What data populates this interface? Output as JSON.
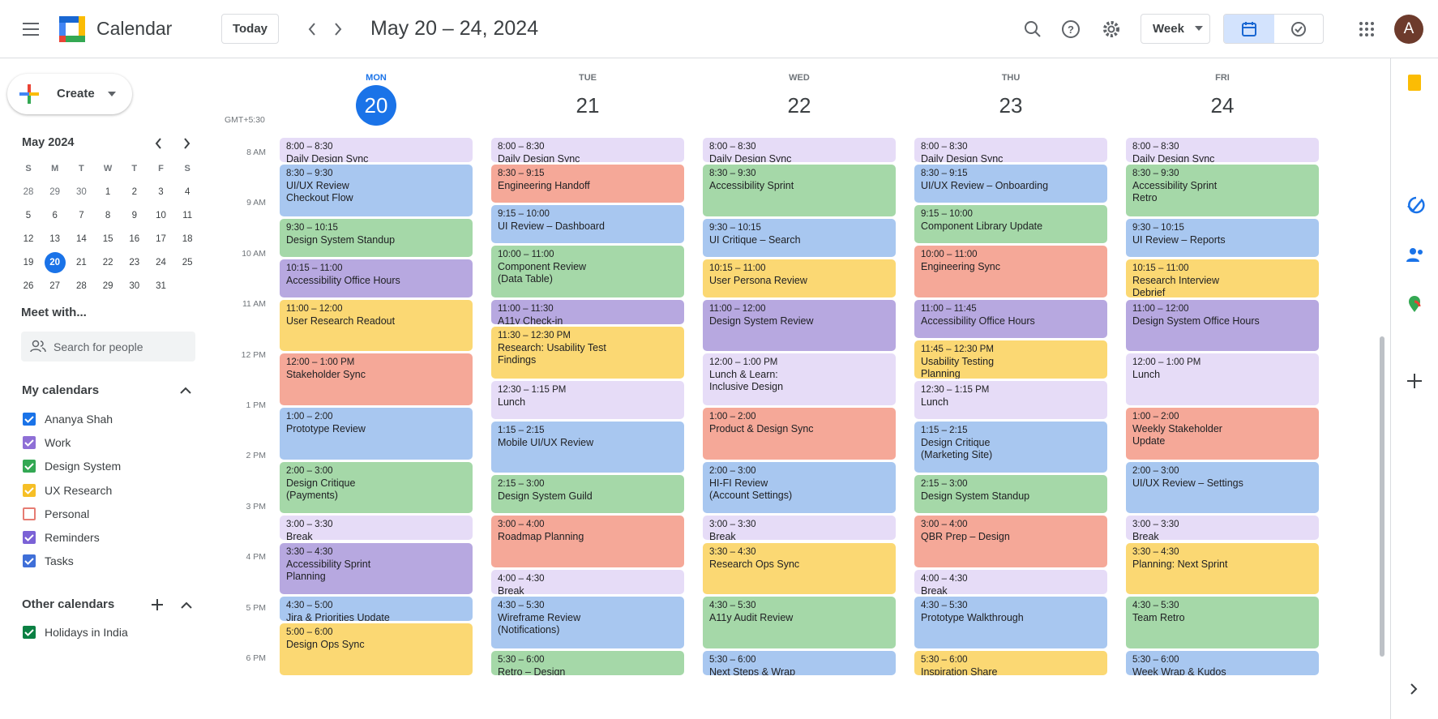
{
  "header": {
    "app_name": "Calendar",
    "today": "Today",
    "date_range": "May 20 – 24, 2024",
    "view": "Week",
    "avatar": "A"
  },
  "sidebar": {
    "create": "Create",
    "mini_calendar": {
      "title": "May 2024",
      "weekdays": [
        "S",
        "M",
        "T",
        "W",
        "T",
        "F",
        "S"
      ],
      "selected": "20",
      "weeks": [
        [
          "28",
          "29",
          "30",
          "1",
          "2",
          "3",
          "4"
        ],
        [
          "5",
          "6",
          "7",
          "8",
          "9",
          "10",
          "11"
        ],
        [
          "12",
          "13",
          "14",
          "15",
          "16",
          "17",
          "18"
        ],
        [
          "19",
          "20",
          "21",
          "22",
          "23",
          "24",
          "25"
        ],
        [
          "26",
          "27",
          "28",
          "29",
          "30",
          "31"
        ]
      ]
    },
    "meet_with": "Meet with...",
    "search_placeholder": "Search for people",
    "my_calendars": {
      "title": "My calendars",
      "items": [
        {
          "name": "Ananya Shah",
          "color": "#1a73e8",
          "checked": true
        },
        {
          "name": "Work",
          "color": "#8e6fd6",
          "checked": true
        },
        {
          "name": "Design System",
          "color": "#33a853",
          "checked": true
        },
        {
          "name": "UX Research",
          "color": "#f6bf26",
          "checked": true
        },
        {
          "name": "Personal",
          "color": "#e67c73",
          "checked": false
        },
        {
          "name": "Reminders",
          "color": "#7b62d6",
          "checked": true
        },
        {
          "name": "Tasks",
          "color": "#3f6fd8",
          "checked": true
        }
      ]
    },
    "other_calendars": {
      "title": "Other calendars",
      "items": [
        {
          "name": "Holidays in India",
          "color": "#0b8043",
          "checked": true
        }
      ]
    }
  },
  "week": {
    "timezone": "GMT+5:30",
    "hours": [
      "8 AM",
      "9 AM",
      "10 AM",
      "11 AM",
      "12 PM",
      "1 PM",
      "2 PM",
      "3 PM",
      "4 PM",
      "5 PM",
      "6 PM"
    ],
    "days": [
      {
        "weekday": "MON",
        "date": "20",
        "today": true,
        "events": [
          {
            "time": "8:00 – 8:30",
            "title": "Daily Design Sync",
            "color": "#e6dcf7"
          },
          {
            "time": "8:30 – 9:30",
            "title": "UI/UX Review\nCheckout Flow",
            "color": "#a8c7f0"
          },
          {
            "time": "9:30 – 10:15",
            "title": "Design System Standup",
            "color": "#a5d8a8"
          },
          {
            "time": "10:15 – 11:00",
            "title": "Accessibility Office Hours",
            "color": "#b7a8e0"
          },
          {
            "time": "11:00 – 12:00",
            "title": "User Research Readout",
            "color": "#fbd873"
          },
          {
            "time": "12:00 – 1:00 PM",
            "title": "Stakeholder Sync",
            "color": "#f5a898"
          },
          {
            "time": "1:00 – 2:00",
            "title": "Prototype Review",
            "color": "#a8c7f0"
          },
          {
            "time": "2:00 – 3:00",
            "title": "Design Critique\n(Payments)",
            "color": "#a5d8a8"
          },
          {
            "time": "3:00 – 3:30",
            "title": "Break",
            "color": "#e6dcf7"
          },
          {
            "time": "3:30 – 4:30",
            "title": "Accessibility Sprint\nPlanning",
            "color": "#b7a8e0"
          },
          {
            "time": "4:30 – 5:00",
            "title": "Jira & Priorities Update",
            "color": "#a8c7f0"
          },
          {
            "time": "5:00 – 6:00",
            "title": "Design Ops Sync",
            "color": "#fbd873"
          }
        ]
      },
      {
        "weekday": "TUE",
        "date": "21",
        "today": false,
        "events": [
          {
            "time": "8:00 – 8:30",
            "title": "Daily Design Sync",
            "color": "#e6dcf7"
          },
          {
            "time": "8:30 – 9:15",
            "title": "Engineering Handoff",
            "color": "#f5a898"
          },
          {
            "time": "9:15 – 10:00",
            "title": "UI Review – Dashboard",
            "color": "#a8c7f0"
          },
          {
            "time": "10:00 – 11:00",
            "title": "Component Review\n(Data Table)",
            "color": "#a5d8a8"
          },
          {
            "time": "11:00 – 11:30",
            "title": "A11y Check-in",
            "color": "#b7a8e0"
          },
          {
            "time": "11:30 – 12:30 PM",
            "title": "Research: Usability Test\nFindings",
            "color": "#fbd873"
          },
          {
            "time": "12:30 – 1:15 PM",
            "title": "Lunch",
            "color": "#e6dcf7"
          },
          {
            "time": "1:15 – 2:15",
            "title": "Mobile UI/UX Review",
            "color": "#a8c7f0"
          },
          {
            "time": "2:15 – 3:00",
            "title": "Design System Guild",
            "color": "#a5d8a8"
          },
          {
            "time": "3:00 – 4:00",
            "title": "Roadmap Planning",
            "color": "#f5a898"
          },
          {
            "time": "4:00 – 4:30",
            "title": "Break",
            "color": "#e6dcf7"
          },
          {
            "time": "4:30 – 5:30",
            "title": "Wireframe Review\n(Notifications)",
            "color": "#a8c7f0"
          },
          {
            "time": "5:30 – 6:00",
            "title": "Retro – Design",
            "color": "#a5d8a8"
          }
        ]
      },
      {
        "weekday": "WED",
        "date": "22",
        "today": false,
        "events": [
          {
            "time": "8:00 – 8:30",
            "title": "Daily Design Sync",
            "color": "#e6dcf7"
          },
          {
            "time": "8:30 – 9:30",
            "title": "Accessibility Sprint",
            "color": "#a5d8a8"
          },
          {
            "time": "9:30 – 10:15",
            "title": "UI Critique – Search",
            "color": "#a8c7f0"
          },
          {
            "time": "10:15 – 11:00",
            "title": "User Persona Review",
            "color": "#fbd873"
          },
          {
            "time": "11:00 – 12:00",
            "title": "Design System Review",
            "color": "#b7a8e0"
          },
          {
            "time": "12:00 – 1:00 PM",
            "title": "Lunch & Learn:\nInclusive Design",
            "color": "#e6dcf7"
          },
          {
            "time": "1:00 – 2:00",
            "title": "Product & Design Sync",
            "color": "#f5a898"
          },
          {
            "time": "2:00 – 3:00",
            "title": "HI-FI Review\n(Account Settings)",
            "color": "#a8c7f0"
          },
          {
            "time": "3:00 – 3:30",
            "title": "Break",
            "color": "#e6dcf7"
          },
          {
            "time": "3:30 – 4:30",
            "title": "Research Ops Sync",
            "color": "#fbd873"
          },
          {
            "time": "4:30 – 5:30",
            "title": "A11y Audit Review",
            "color": "#a5d8a8"
          },
          {
            "time": "5:30 – 6:00",
            "title": "Next Steps & Wrap",
            "color": "#a8c7f0"
          }
        ]
      },
      {
        "weekday": "THU",
        "date": "23",
        "today": false,
        "events": [
          {
            "time": "8:00 – 8:30",
            "title": "Daily Design Sync",
            "color": "#e6dcf7"
          },
          {
            "time": "8:30 – 9:15",
            "title": "UI/UX Review – Onboarding",
            "color": "#a8c7f0"
          },
          {
            "time": "9:15 – 10:00",
            "title": "Component Library Update",
            "color": "#a5d8a8"
          },
          {
            "time": "10:00 – 11:00",
            "title": "Engineering Sync",
            "color": "#f5a898"
          },
          {
            "time": "11:00 – 11:45",
            "title": "Accessibility Office Hours",
            "color": "#b7a8e0"
          },
          {
            "time": "11:45 – 12:30 PM",
            "title": "Usability Testing\nPlanning",
            "color": "#fbd873"
          },
          {
            "time": "12:30 – 1:15 PM",
            "title": "Lunch",
            "color": "#e6dcf7"
          },
          {
            "time": "1:15 – 2:15",
            "title": "Design Critique\n(Marketing Site)",
            "color": "#a8c7f0"
          },
          {
            "time": "2:15 – 3:00",
            "title": "Design System Standup",
            "color": "#a5d8a8"
          },
          {
            "time": "3:00 – 4:00",
            "title": "QBR Prep – Design",
            "color": "#f5a898"
          },
          {
            "time": "4:00 – 4:30",
            "title": "Break",
            "color": "#e6dcf7"
          },
          {
            "time": "4:30 – 5:30",
            "title": "Prototype Walkthrough",
            "color": "#a8c7f0"
          },
          {
            "time": "5:30 – 6:00",
            "title": "Inspiration Share",
            "color": "#fbd873"
          }
        ]
      },
      {
        "weekday": "FRI",
        "date": "24",
        "today": false,
        "events": [
          {
            "time": "8:00 – 8:30",
            "title": "Daily Design Sync",
            "color": "#e6dcf7"
          },
          {
            "time": "8:30 – 9:30",
            "title": "Accessibility Sprint\nRetro",
            "color": "#a5d8a8"
          },
          {
            "time": "9:30 – 10:15",
            "title": "UI Review – Reports",
            "color": "#a8c7f0"
          },
          {
            "time": "10:15 – 11:00",
            "title": "Research Interview\nDebrief",
            "color": "#fbd873"
          },
          {
            "time": "11:00 – 12:00",
            "title": "Design System Office Hours",
            "color": "#b7a8e0"
          },
          {
            "time": "12:00 – 1:00 PM",
            "title": "Lunch",
            "color": "#e6dcf7"
          },
          {
            "time": "1:00 – 2:00",
            "title": "Weekly Stakeholder\nUpdate",
            "color": "#f5a898"
          },
          {
            "time": "2:00 – 3:00",
            "title": "UI/UX Review – Settings",
            "color": "#a8c7f0"
          },
          {
            "time": "3:00 – 3:30",
            "title": "Break",
            "color": "#e6dcf7"
          },
          {
            "time": "3:30 – 4:30",
            "title": "Planning: Next Sprint",
            "color": "#fbd873"
          },
          {
            "time": "4:30 – 5:30",
            "title": "Team Retro",
            "color": "#a5d8a8"
          },
          {
            "time": "5:30 – 6:00",
            "title": "Week Wrap & Kudos",
            "color": "#a8c7f0"
          }
        ]
      }
    ]
  }
}
